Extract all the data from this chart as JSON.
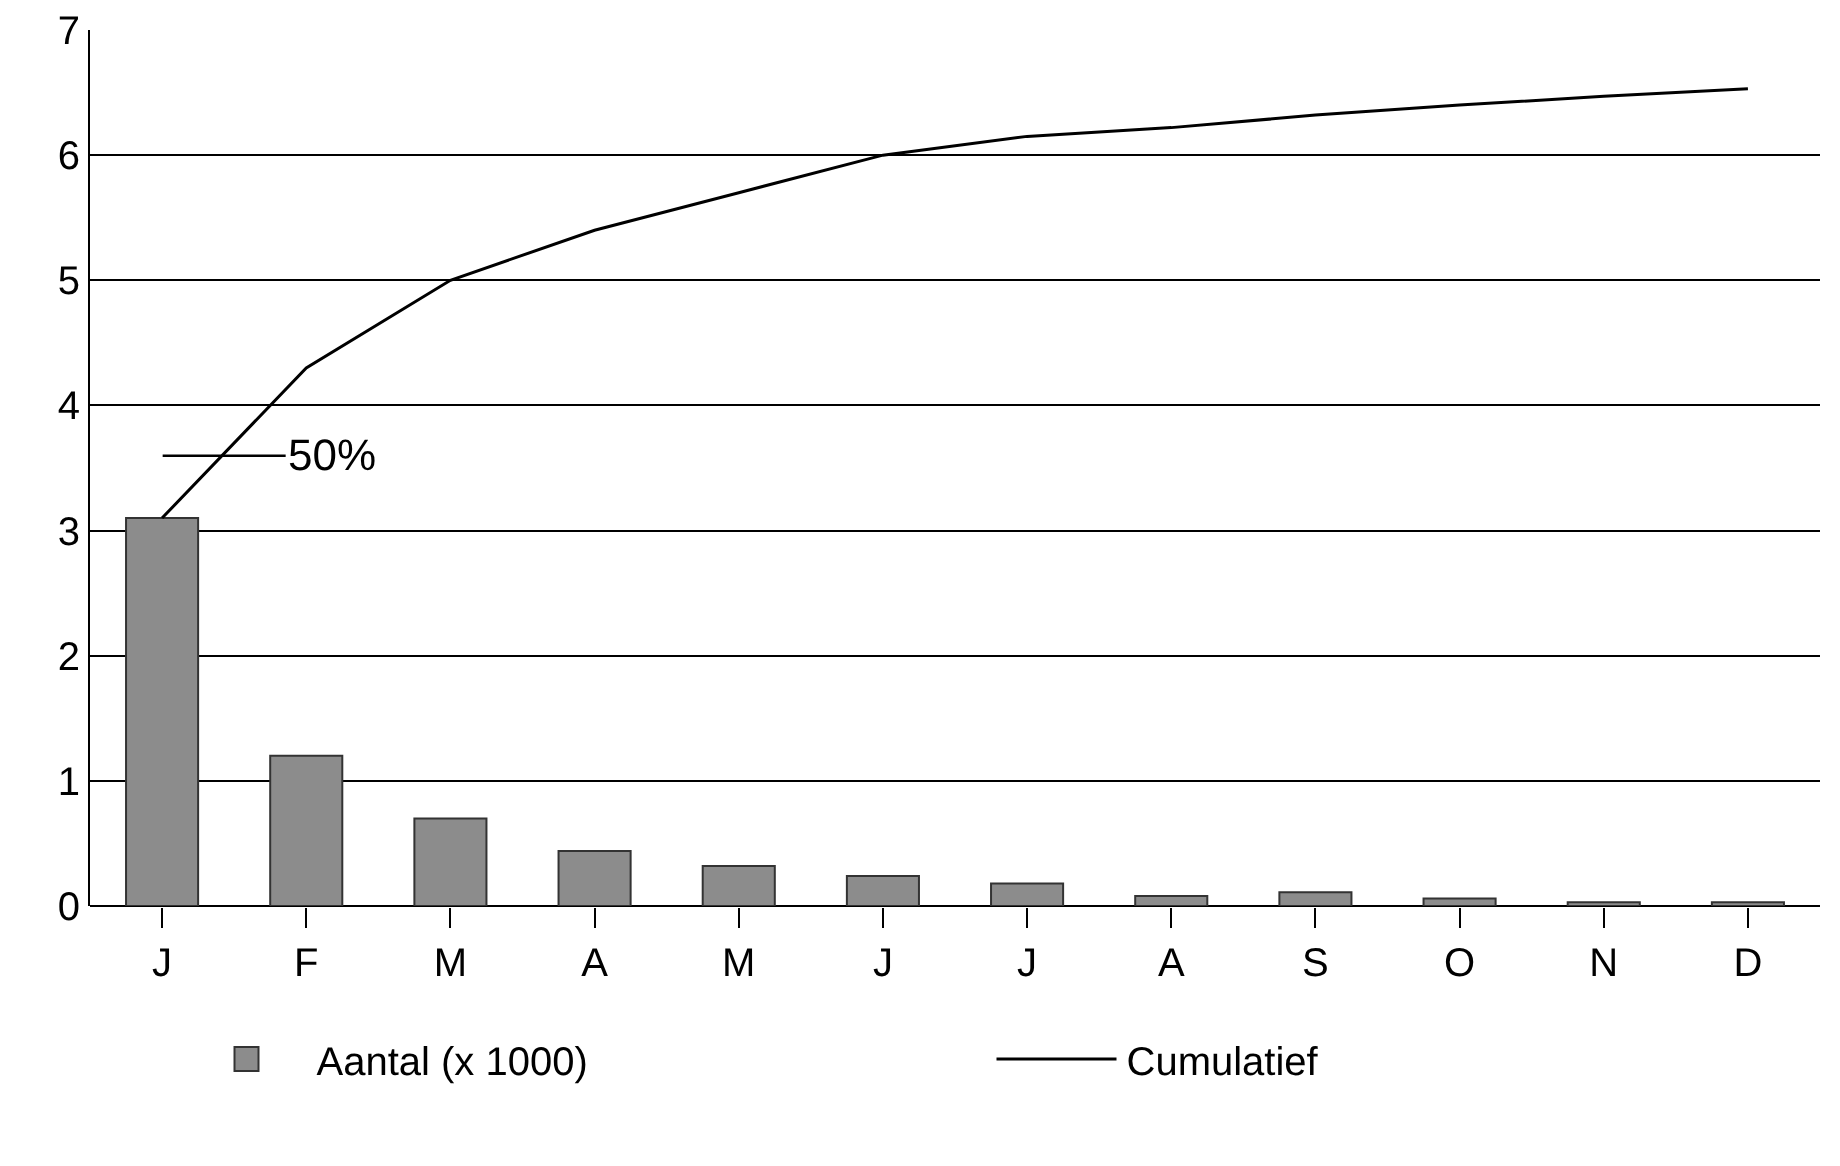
{
  "chart_data": {
    "type": "bar",
    "categories": [
      "J",
      "F",
      "M",
      "A",
      "M",
      "J",
      "J",
      "A",
      "S",
      "O",
      "N",
      "D"
    ],
    "series": [
      {
        "name": "Aantal (x 1000)",
        "color": "#8c8c8c",
        "values": [
          3.1,
          1.2,
          0.7,
          0.44,
          0.32,
          0.24,
          0.18,
          0.08,
          0.11,
          0.06,
          0.03,
          0.03
        ]
      },
      {
        "name": "Cumulatief",
        "type": "line",
        "color": "#000000",
        "values": [
          3.1,
          4.3,
          5.0,
          5.4,
          5.7,
          6.0,
          6.15,
          6.22,
          6.32,
          6.4,
          6.47,
          6.53
        ]
      }
    ],
    "annotations": [
      "50%"
    ],
    "ylim": [
      0,
      7
    ],
    "yticks": [
      0,
      1,
      2,
      3,
      4,
      5,
      6,
      7
    ],
    "grid": "y",
    "legend": "bottom",
    "marker": "none",
    "line_style": "solid"
  }
}
